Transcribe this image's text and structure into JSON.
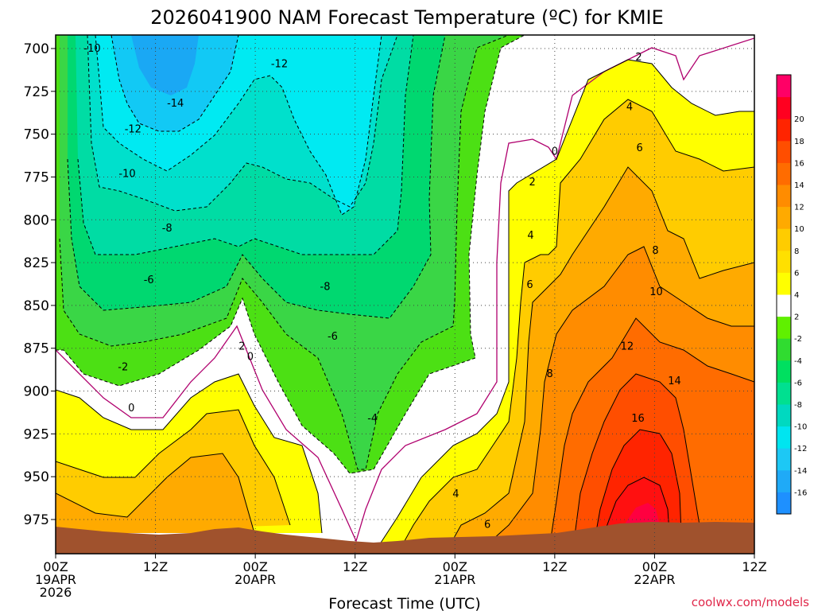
{
  "chart_data": {
    "type": "heatmap",
    "title": "2026041900 NAM Forecast Temperature (ºC) for KMIE",
    "xlabel": "Forecast Time (UTC)",
    "ylabel": "",
    "y_ticks": [
      700,
      725,
      750,
      775,
      800,
      825,
      850,
      875,
      900,
      925,
      950,
      975
    ],
    "ylim": [
      995,
      695
    ],
    "x_ticks": [
      {
        "hour": 0,
        "label": "00Z",
        "sub": [
          "19APR",
          "2026"
        ]
      },
      {
        "hour": 12,
        "label": "12Z",
        "sub": []
      },
      {
        "hour": 24,
        "label": "00Z",
        "sub": [
          "20APR"
        ]
      },
      {
        "hour": 36,
        "label": "12Z",
        "sub": []
      },
      {
        "hour": 48,
        "label": "00Z",
        "sub": [
          "21APR"
        ]
      },
      {
        "hour": 60,
        "label": "12Z",
        "sub": []
      },
      {
        "hour": 72,
        "label": "00Z",
        "sub": [
          "22APR"
        ]
      },
      {
        "hour": 84,
        "label": "12Z",
        "sub": []
      }
    ],
    "xlim": [
      0,
      84
    ],
    "colorbar": {
      "levels": [
        -18,
        -16,
        -14,
        -12,
        -10,
        -8,
        -6,
        -4,
        -2,
        2,
        4,
        6,
        8,
        10,
        12,
        14,
        16,
        18,
        20,
        22
      ],
      "labels": [
        -16,
        -14,
        -12,
        -10,
        -8,
        -6,
        -4,
        -2,
        2,
        4,
        6,
        8,
        10,
        12,
        14,
        16,
        18,
        20
      ],
      "colors": [
        "#1e90ff",
        "#1faaf7",
        "#1dc8f5",
        "#00e5f0",
        "#00d9c0",
        "#00e090",
        "#00e060",
        "#30dc30",
        "#60f000",
        "#ffffff",
        "#ffff00",
        "#ffe000",
        "#ffcc00",
        "#ffaa00",
        "#ff8c00",
        "#ff6c00",
        "#ff4e00",
        "#ff2400",
        "#ff0020",
        "#ff0066"
      ]
    },
    "contour_labels": [
      {
        "text": "-10",
        "hour": 4.4,
        "p": 701
      },
      {
        "text": "-14",
        "hour": 14.4,
        "p": 733
      },
      {
        "text": "-12",
        "hour": 9.3,
        "p": 748
      },
      {
        "text": "-12",
        "hour": 26.9,
        "p": 710
      },
      {
        "text": "-10",
        "hour": 8.6,
        "p": 774
      },
      {
        "text": "-8",
        "hour": 13.4,
        "p": 806
      },
      {
        "text": "-6",
        "hour": 11.2,
        "p": 836
      },
      {
        "text": "-8",
        "hour": 32.4,
        "p": 840
      },
      {
        "text": "-6",
        "hour": 33.3,
        "p": 869
      },
      {
        "text": "-2",
        "hour": 8.1,
        "p": 887
      },
      {
        "text": "0",
        "hour": 9.1,
        "p": 911
      },
      {
        "text": "2",
        "hour": 22.4,
        "p": 875
      },
      {
        "text": "0",
        "hour": 23.4,
        "p": 881
      },
      {
        "text": "-4",
        "hour": 38.1,
        "p": 917
      },
      {
        "text": "4",
        "hour": 48.1,
        "p": 961
      },
      {
        "text": "6",
        "hour": 51.9,
        "p": 979
      },
      {
        "text": "0",
        "hour": 60.0,
        "p": 761
      },
      {
        "text": "2",
        "hour": 57.3,
        "p": 779
      },
      {
        "text": "4",
        "hour": 57.1,
        "p": 810
      },
      {
        "text": "6",
        "hour": 57.0,
        "p": 839
      },
      {
        "text": "8",
        "hour": 59.4,
        "p": 891
      },
      {
        "text": "2",
        "hour": 70.1,
        "p": 706
      },
      {
        "text": "4",
        "hour": 69.0,
        "p": 735
      },
      {
        "text": "6",
        "hour": 70.2,
        "p": 759
      },
      {
        "text": "8",
        "hour": 72.1,
        "p": 819
      },
      {
        "text": "10",
        "hour": 72.2,
        "p": 843
      },
      {
        "text": "12",
        "hour": 68.7,
        "p": 875
      },
      {
        "text": "14",
        "hour": 74.4,
        "p": 895
      },
      {
        "text": "16",
        "hour": 70.0,
        "p": 917
      }
    ],
    "credit": "coolwx.com/models"
  }
}
